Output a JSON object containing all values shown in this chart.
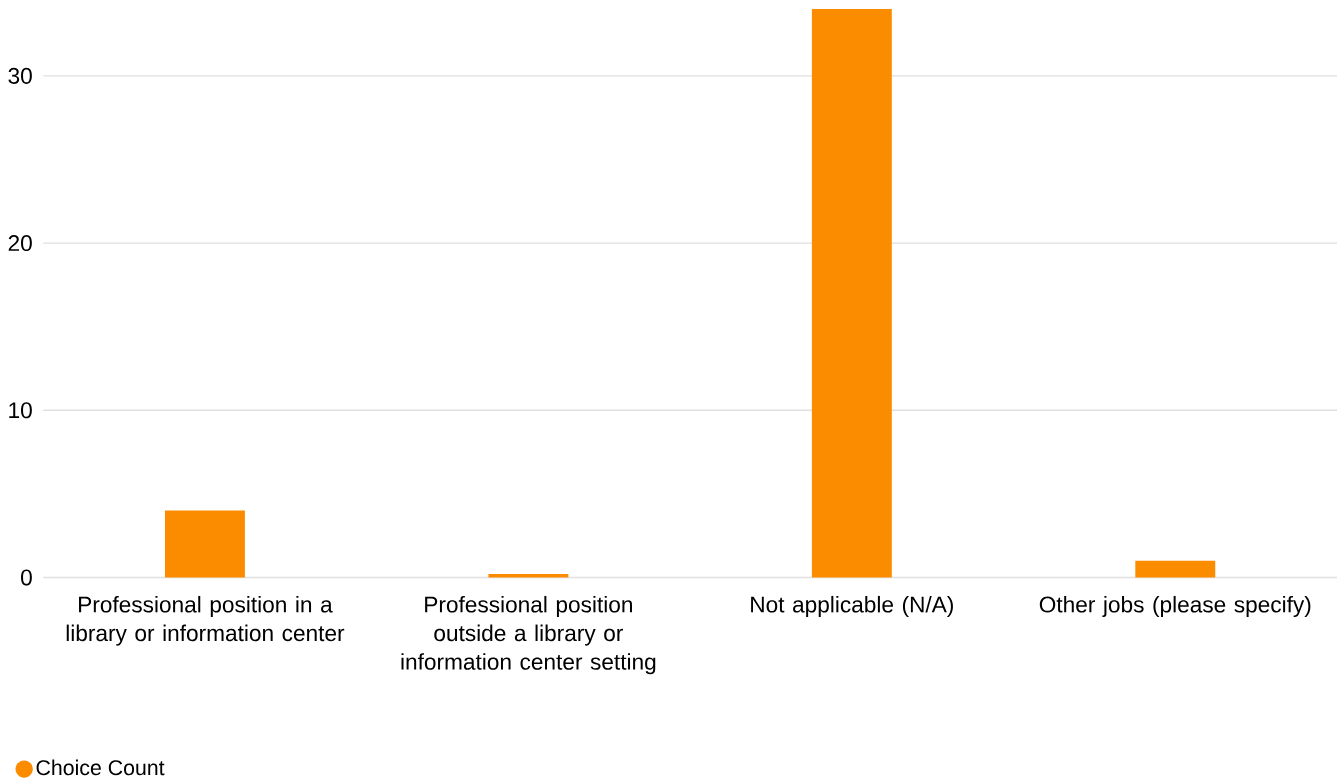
{
  "chart_data": {
    "type": "bar",
    "categories": [
      "Professional position in a library or information center",
      "Professional position outside a library or information center setting",
      "Not applicable (N/A)",
      "Other jobs (please specify)"
    ],
    "series": [
      {
        "name": "Choice Count",
        "color": "#fb8c00",
        "values": [
          4,
          0.2,
          34,
          1
        ]
      }
    ],
    "ylim": [
      0,
      34
    ],
    "yticks": [
      0,
      10,
      20,
      30
    ],
    "grid": "y",
    "legend": "bottom left"
  }
}
